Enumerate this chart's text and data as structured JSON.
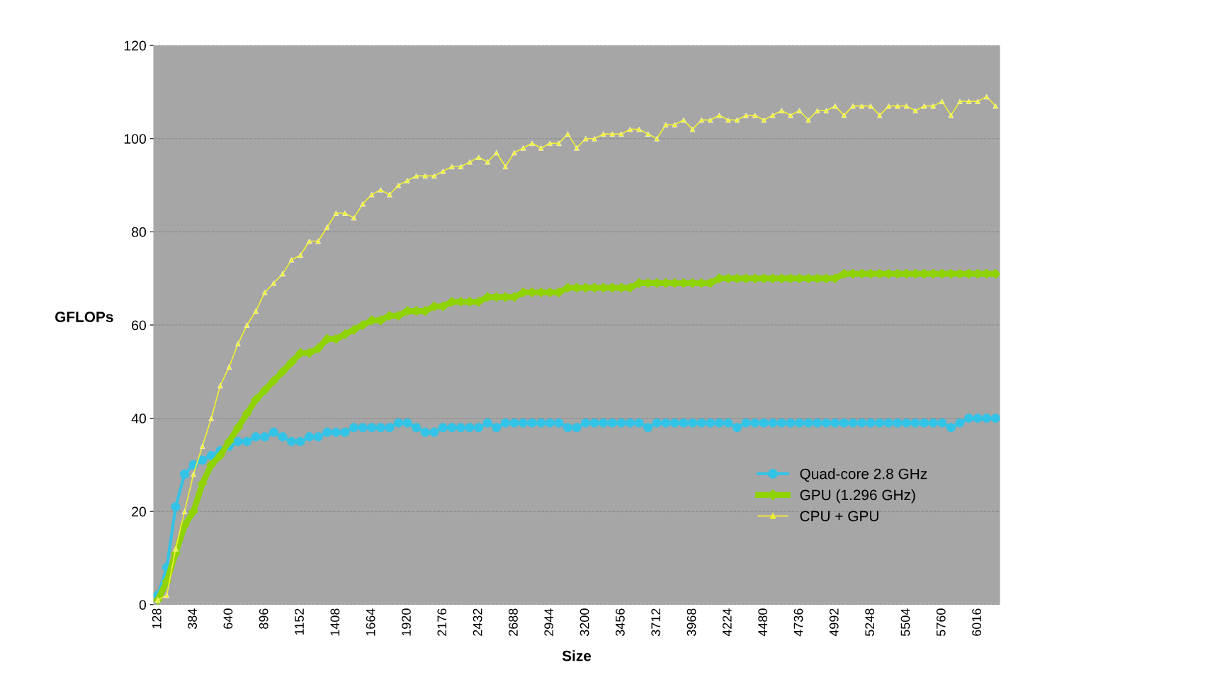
{
  "chart_data": {
    "type": "line",
    "xlabel": "Size",
    "ylabel": "GFLOPs",
    "categories": [
      "128",
      null,
      null,
      null,
      "384",
      null,
      null,
      null,
      "640",
      null,
      null,
      null,
      "896",
      null,
      null,
      null,
      "1152",
      null,
      null,
      null,
      "1408",
      null,
      null,
      null,
      "1664",
      null,
      null,
      null,
      "1920",
      null,
      null,
      null,
      "2176",
      null,
      null,
      null,
      "2432",
      null,
      null,
      null,
      "2688",
      null,
      null,
      null,
      "2944",
      null,
      null,
      null,
      "3200",
      null,
      null,
      null,
      "3456",
      null,
      null,
      null,
      "3712",
      null,
      null,
      null,
      "3968",
      null,
      null,
      null,
      "4224",
      null,
      null,
      null,
      "4480",
      null,
      null,
      null,
      "4736",
      null,
      null,
      null,
      "4992",
      null,
      null,
      null,
      "5248",
      null,
      null,
      null,
      "5504",
      null,
      null,
      null,
      "5760",
      null,
      null,
      null,
      "6016",
      null,
      null
    ],
    "ylim": [
      0,
      120
    ],
    "yticks": [
      0,
      20,
      40,
      60,
      80,
      100,
      120
    ],
    "grid": "y",
    "legend": "lower right",
    "series": [
      {
        "name": "Quad-core 2.8 GHz",
        "color": "#33c3e6",
        "marker": "circle",
        "values": [
          2,
          8,
          21,
          28,
          30,
          31,
          32,
          33,
          34,
          35,
          35,
          36,
          36,
          37,
          36,
          35,
          35,
          36,
          36,
          37,
          37,
          37,
          38,
          38,
          38,
          38,
          38,
          39,
          39,
          38,
          37,
          37,
          38,
          38,
          38,
          38,
          38,
          39,
          38,
          39,
          39,
          39,
          39,
          39,
          39,
          39,
          38,
          38,
          39,
          39,
          39,
          39,
          39,
          39,
          39,
          38,
          39,
          39,
          39,
          39,
          39,
          39,
          39,
          39,
          39,
          38,
          39,
          39,
          39,
          39,
          39,
          39,
          39,
          39,
          39,
          39,
          39,
          39,
          39,
          39,
          39,
          39,
          39,
          39,
          39,
          39,
          39,
          39,
          39,
          38,
          39,
          40,
          40,
          40,
          40
        ]
      },
      {
        "name": "GPU (1.296 GHz)",
        "color": "#8fd400",
        "marker": "diamond",
        "values": [
          1,
          5,
          11,
          17,
          20,
          26,
          30,
          32,
          35,
          38,
          41,
          44,
          46,
          48,
          50,
          52,
          54,
          54,
          55,
          57,
          57,
          58,
          59,
          60,
          61,
          61,
          62,
          62,
          63,
          63,
          63,
          64,
          64,
          65,
          65,
          65,
          65,
          66,
          66,
          66,
          66,
          67,
          67,
          67,
          67,
          67,
          68,
          68,
          68,
          68,
          68,
          68,
          68,
          68,
          69,
          69,
          69,
          69,
          69,
          69,
          69,
          69,
          69,
          70,
          70,
          70,
          70,
          70,
          70,
          70,
          70,
          70,
          70,
          70,
          70,
          70,
          70,
          71,
          71,
          71,
          71,
          71,
          71,
          71,
          71,
          71,
          71,
          71,
          71,
          71,
          71,
          71,
          71,
          71,
          71
        ]
      },
      {
        "name": "CPU + GPU",
        "color": "#f0f030",
        "marker": "triangle",
        "values": [
          1,
          2,
          12,
          20,
          28,
          34,
          40,
          47,
          51,
          56,
          60,
          63,
          67,
          69,
          71,
          74,
          75,
          78,
          78,
          81,
          84,
          84,
          83,
          86,
          88,
          89,
          88,
          90,
          91,
          92,
          92,
          92,
          93,
          94,
          94,
          95,
          96,
          95,
          97,
          94,
          97,
          98,
          99,
          98,
          99,
          99,
          101,
          98,
          100,
          100,
          101,
          101,
          101,
          102,
          102,
          101,
          100,
          103,
          103,
          104,
          102,
          104,
          104,
          105,
          104,
          104,
          105,
          105,
          104,
          105,
          106,
          105,
          106,
          104,
          106,
          106,
          107,
          105,
          107,
          107,
          107,
          105,
          107,
          107,
          107,
          106,
          107,
          107,
          108,
          105,
          108,
          108,
          108,
          109,
          107
        ]
      }
    ]
  }
}
